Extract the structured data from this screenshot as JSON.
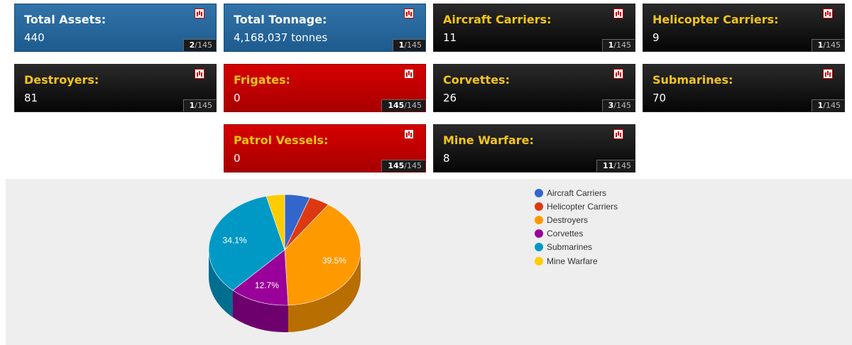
{
  "cards": [
    {
      "label": "Total Assets:",
      "value": "440",
      "rank": "2",
      "total": "/145",
      "theme": "blue"
    },
    {
      "label": "Total Tonnage:",
      "value": "4,168,037 tonnes",
      "rank": "1",
      "total": "/145",
      "theme": "blue"
    },
    {
      "label": "Aircraft Carriers:",
      "value": "11",
      "rank": "1",
      "total": "/145",
      "theme": "black"
    },
    {
      "label": "Helicopter Carriers:",
      "value": "9",
      "rank": "1",
      "total": "/145",
      "theme": "black"
    },
    {
      "label": "Destroyers:",
      "value": "81",
      "rank": "1",
      "total": "/145",
      "theme": "black"
    },
    {
      "label": "Frigates:",
      "value": "0",
      "rank": "145",
      "total": "/145",
      "theme": "red"
    },
    {
      "label": "Corvettes:",
      "value": "26",
      "rank": "3",
      "total": "/145",
      "theme": "black"
    },
    {
      "label": "Submarines:",
      "value": "70",
      "rank": "1",
      "total": "/145",
      "theme": "black"
    },
    {
      "label": "Patrol Vessels:",
      "value": "0",
      "rank": "145",
      "total": "/145",
      "theme": "red"
    },
    {
      "label": "Mine Warfare:",
      "value": "8",
      "rank": "11",
      "total": "/145",
      "theme": "black"
    }
  ],
  "icons": {
    "card_icon": "bar-chart-icon"
  },
  "chart_data": {
    "type": "pie",
    "series": [
      {
        "name": "Aircraft Carriers",
        "value": 11,
        "color": "#3366cc"
      },
      {
        "name": "Helicopter Carriers",
        "value": 9,
        "color": "#dc3912"
      },
      {
        "name": "Destroyers",
        "value": 81,
        "color": "#ff9900"
      },
      {
        "name": "Corvettes",
        "value": 26,
        "color": "#990099"
      },
      {
        "name": "Submarines",
        "value": 70,
        "color": "#0099c6"
      },
      {
        "name": "Mine Warfare",
        "value": 8,
        "color": "#ffcc00"
      }
    ],
    "data_labels": [
      "",
      "",
      "39.5%",
      "12.7%",
      "34.1%",
      ""
    ],
    "legend_position": "right"
  }
}
